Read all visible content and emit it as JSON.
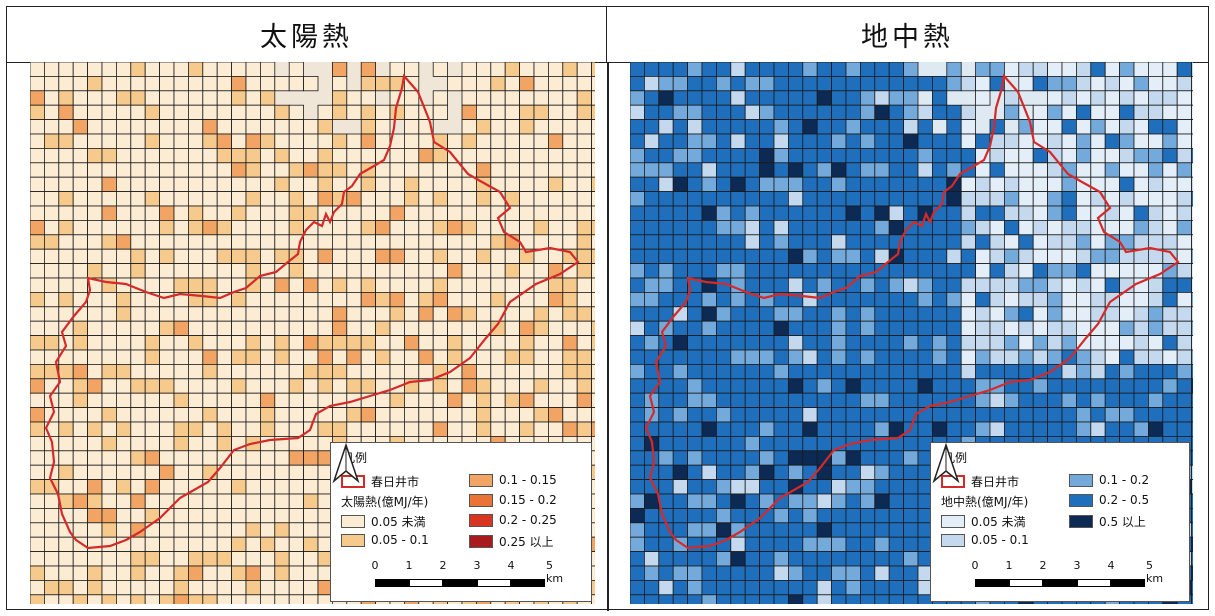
{
  "panels": [
    {
      "title": "太陽熱",
      "legend": {
        "title": "凡例",
        "city_label": "春日井市",
        "series_label": "太陽熱(億MJ/年)",
        "classes": [
          {
            "label": "0.05 未満",
            "color": "#fcecd3"
          },
          {
            "label": "0.05 - 0.1",
            "color": "#f6c98c"
          },
          {
            "label": "0.1 - 0.15",
            "color": "#f2a465"
          },
          {
            "label": "0.15 - 0.2",
            "color": "#ea7336"
          },
          {
            "label": "0.2 - 0.25",
            "color": "#d9341f"
          },
          {
            "label": "0.25 以上",
            "color": "#a71a1e"
          }
        ]
      }
    },
    {
      "title": "地中熱",
      "legend": {
        "title": "凡例",
        "city_label": "春日井市",
        "series_label": "地中熱(億MJ/年)",
        "classes": [
          {
            "label": "0.05 未満",
            "color": "#e3eef9"
          },
          {
            "label": "0.05 - 0.1",
            "color": "#c4d9ee"
          },
          {
            "label": "0.1 - 0.2",
            "color": "#74aadb"
          },
          {
            "label": "0.2 - 0.5",
            "color": "#1f6fbd"
          },
          {
            "label": "0.5 以上",
            "color": "#0d2a55"
          }
        ]
      }
    }
  ],
  "scale": {
    "ticks": [
      "0",
      "1",
      "2",
      "3",
      "4",
      "5 km"
    ]
  },
  "colors": {
    "boundary": "#d42a2a",
    "grid": "#1a1a1a"
  }
}
